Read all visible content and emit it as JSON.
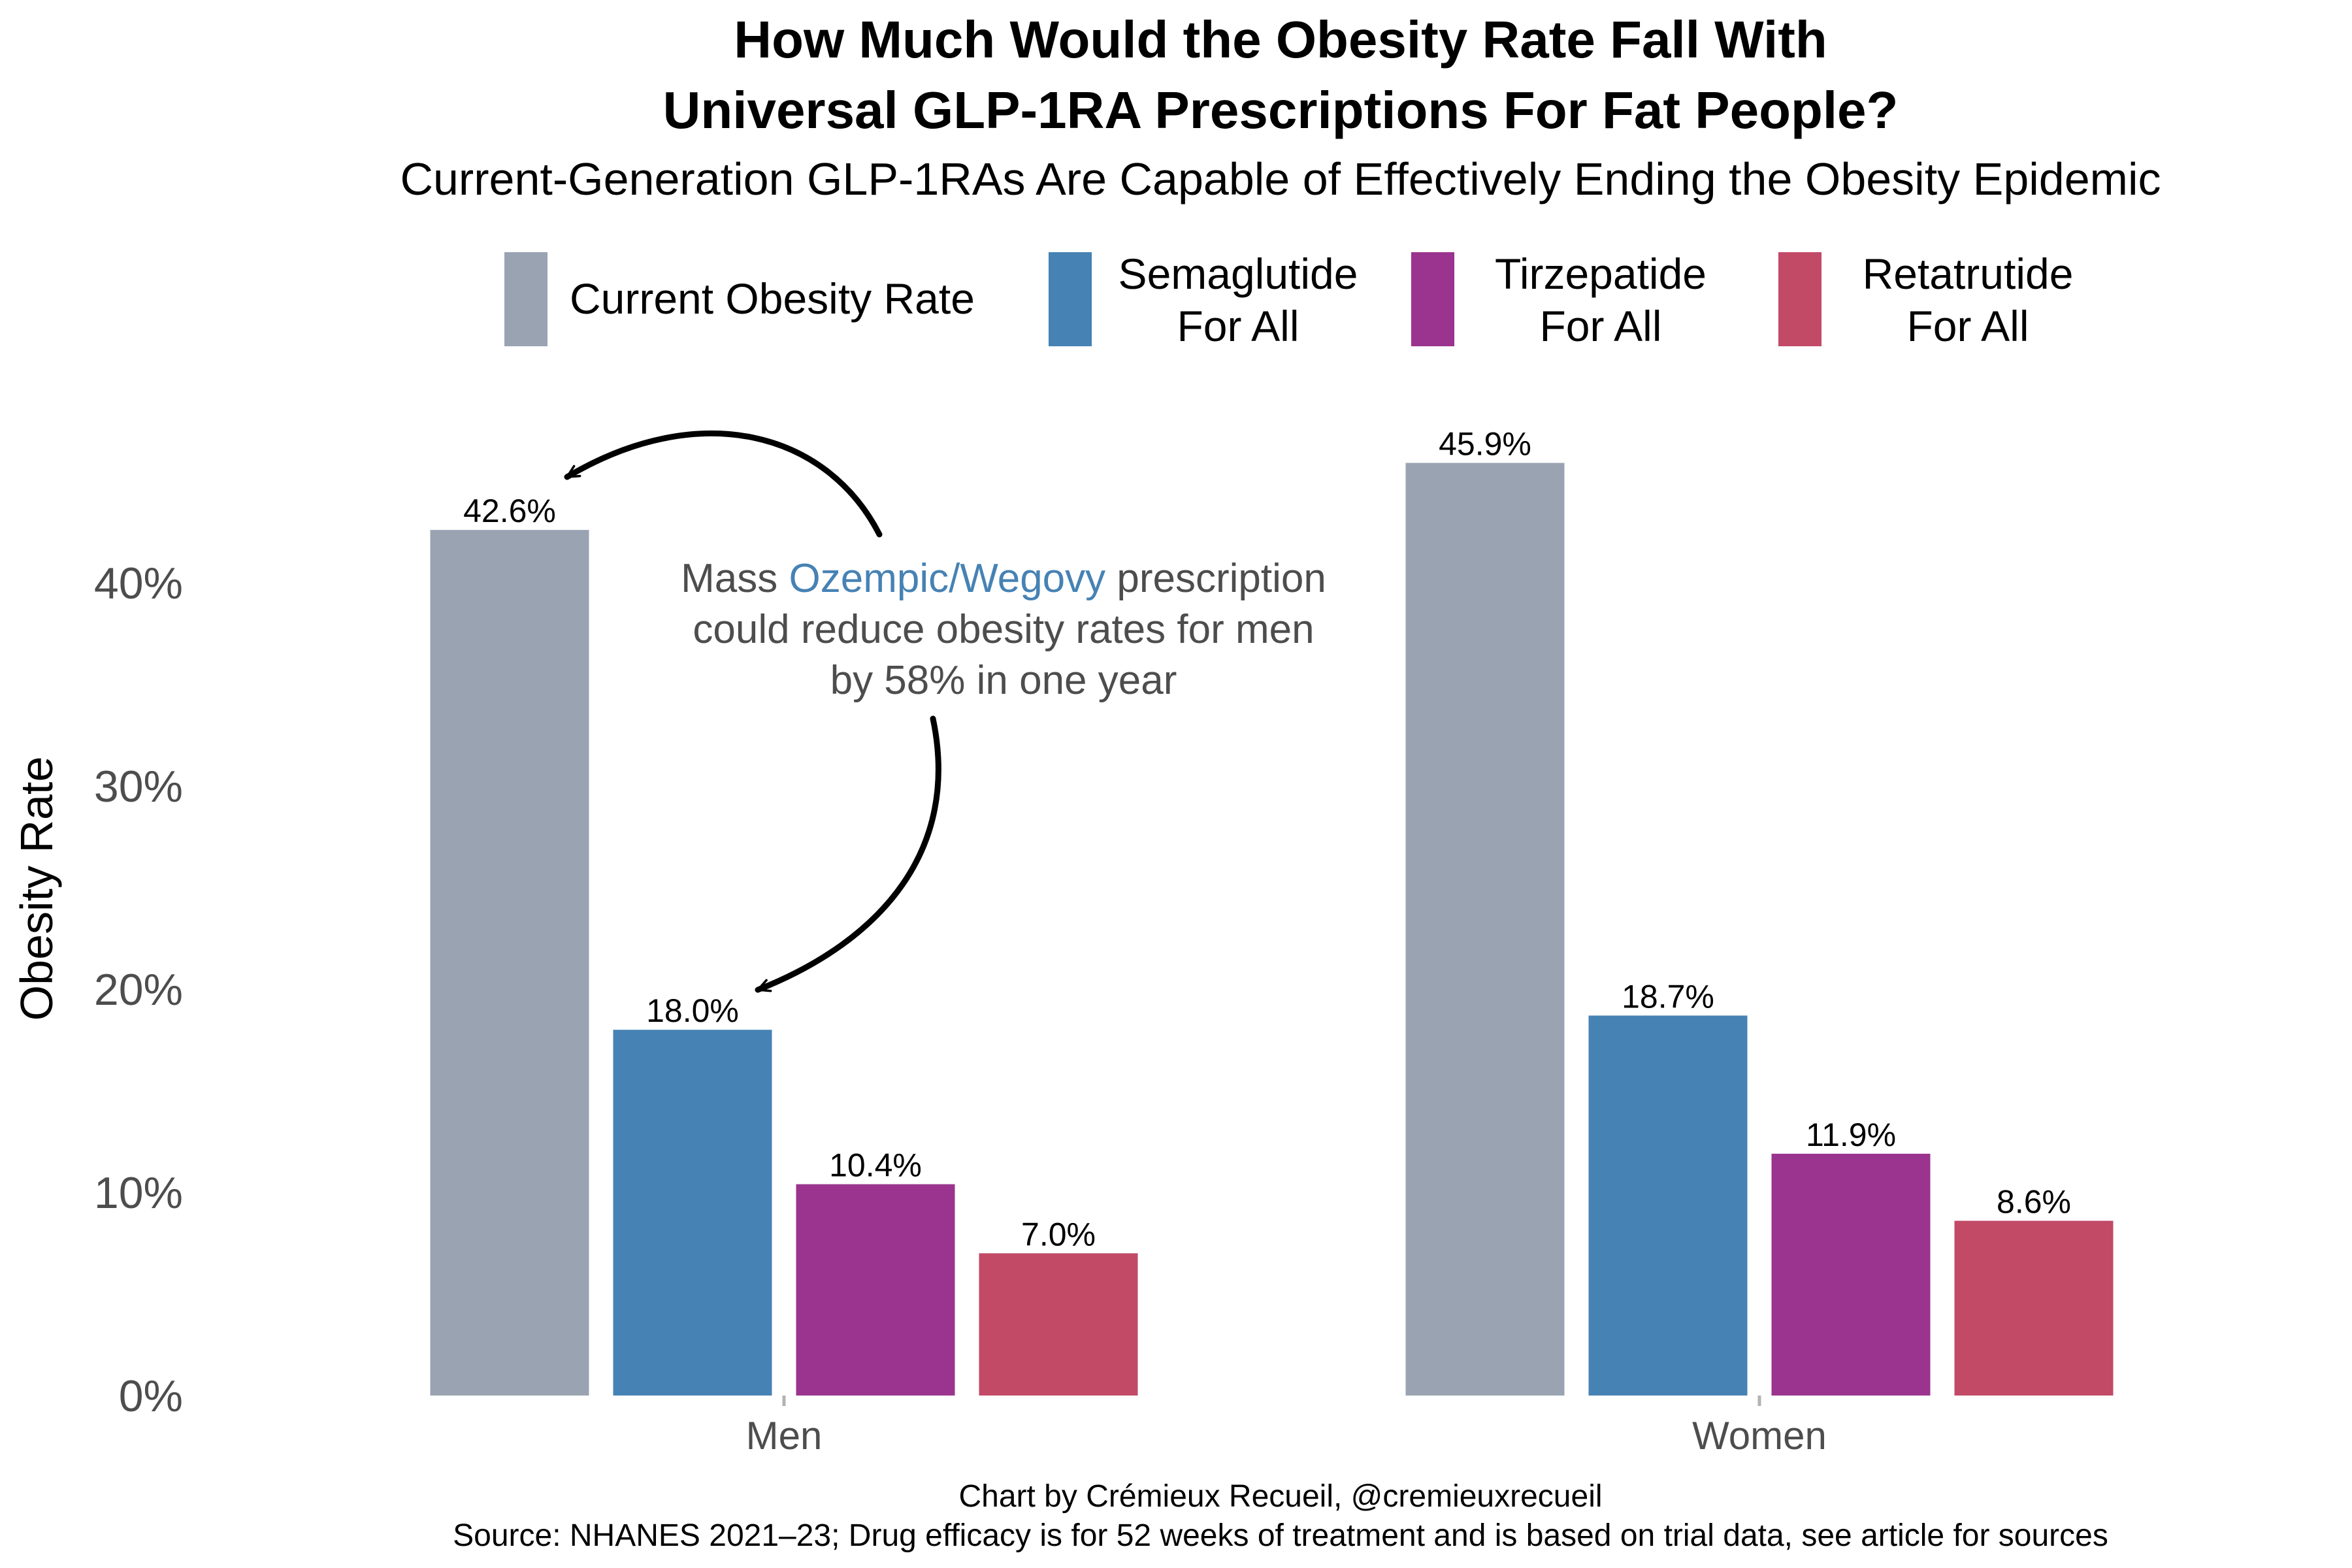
{
  "chart_data": {
    "type": "bar",
    "title_line1": "How Much Would the Obesity Rate Fall With",
    "title_line2": "Universal GLP-1RA Prescriptions For Fat People?",
    "subtitle": "Current-Generation GLP-1RAs Are Capable of Effectively Ending the Obesity Epidemic",
    "xlabel": "",
    "ylabel": "Obesity Rate",
    "ylim": [
      0,
      48
    ],
    "yticks": [
      0,
      10,
      20,
      30,
      40
    ],
    "ytick_labels": [
      "0%",
      "10%",
      "20%",
      "30%",
      "40%"
    ],
    "grid": false,
    "legend_position": "top",
    "categories": [
      "Men",
      "Women"
    ],
    "series": [
      {
        "name": "Current Obesity Rate",
        "legend_lines": [
          "Current Obesity Rate"
        ],
        "color": "#9AA3B2",
        "values": [
          42.6,
          45.9
        ],
        "labels": [
          "42.6%",
          "45.9%"
        ]
      },
      {
        "name": "Semaglutide For All",
        "legend_lines": [
          "Semaglutide",
          "For All"
        ],
        "color": "#4682B4",
        "values": [
          18.0,
          18.7
        ],
        "labels": [
          "18.0%",
          "18.7%"
        ]
      },
      {
        "name": "Tirzepatide For All",
        "legend_lines": [
          "Tirzepatide",
          "For All"
        ],
        "color": "#9A348E",
        "values": [
          10.4,
          11.9
        ],
        "labels": [
          "10.4%",
          "11.9%"
        ]
      },
      {
        "name": "Retatrutide For All",
        "legend_lines": [
          "Retatrutide",
          "For All"
        ],
        "color": "#C24A66",
        "values": [
          7.0,
          8.6
        ],
        "labels": [
          "7.0%",
          "8.6%"
        ]
      }
    ],
    "annotation": {
      "line1_prefix": "Mass ",
      "line1_highlight": "Ozempic/Wegovy",
      "line1_suffix": " prescription",
      "line2": "could reduce obesity rates for men",
      "line3": "by 58% in one year",
      "highlight_color": "#4682B4",
      "text_color": "#4D4D4D"
    },
    "caption_line1": "Chart by Crémieux Recueil, @cremieuxrecueil",
    "caption_line2": "Source: NHANES 2021–23; Drug efficacy is for 52 weeks of treatment and is based on trial data, see article for sources"
  }
}
